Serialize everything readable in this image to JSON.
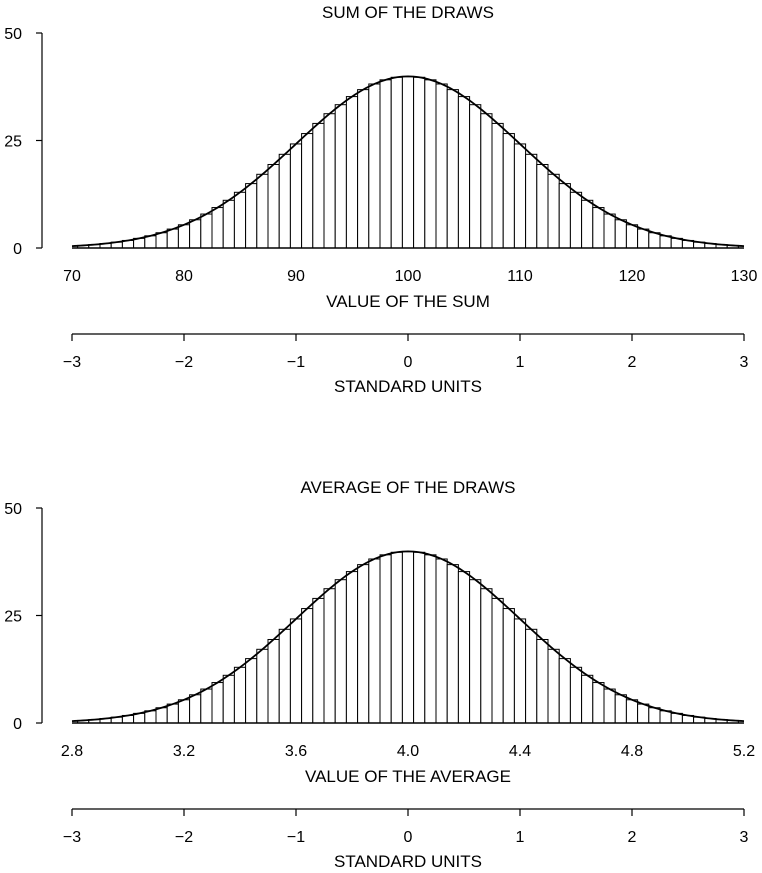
{
  "chart_data": [
    {
      "type": "bar",
      "title": "SUM OF THE DRAWS",
      "xlabel": "VALUE OF THE SUM",
      "ylabel": "",
      "x_range": [
        70,
        130
      ],
      "ylim": [
        0,
        50
      ],
      "y_ticks": [
        "0",
        "25",
        "50"
      ],
      "x_ticks": [
        {
          "value": 70,
          "label": "70"
        },
        {
          "value": 80,
          "label": "80"
        },
        {
          "value": 90,
          "label": "90"
        },
        {
          "value": 100,
          "label": "100"
        },
        {
          "value": 110,
          "label": "110"
        },
        {
          "value": 120,
          "label": "120"
        },
        {
          "value": 130,
          "label": "130"
        }
      ],
      "bar_centers": [
        71,
        72,
        73,
        74,
        75,
        76,
        77,
        78,
        79,
        80,
        81,
        82,
        83,
        84,
        85,
        86,
        87,
        88,
        89,
        90,
        91,
        92,
        93,
        94,
        95,
        96,
        97,
        98,
        99,
        100,
        101,
        102,
        103,
        104,
        105,
        106,
        107,
        108,
        109,
        110,
        111,
        112,
        113,
        114,
        115,
        116,
        117,
        118,
        119,
        120,
        121,
        122,
        123,
        124,
        125,
        126,
        127,
        128,
        129
      ],
      "curve": {
        "kind": "normal",
        "mean": 100,
        "sd": 10,
        "peak": 39.9
      },
      "standard_units": {
        "label": "STANDARD UNITS",
        "ticks": [
          {
            "value": -3,
            "label": "−3"
          },
          {
            "value": -2,
            "label": "−2"
          },
          {
            "value": -1,
            "label": "−1"
          },
          {
            "value": 0,
            "label": "0"
          },
          {
            "value": 1,
            "label": "1"
          },
          {
            "value": 2,
            "label": "2"
          },
          {
            "value": 3,
            "label": "3"
          }
        ]
      }
    },
    {
      "type": "bar",
      "title": "AVERAGE OF THE DRAWS",
      "xlabel": "VALUE OF THE AVERAGE",
      "ylabel": "",
      "x_range": [
        2.8,
        5.2
      ],
      "ylim": [
        0,
        50
      ],
      "y_ticks": [
        "0",
        "25",
        "50"
      ],
      "x_ticks": [
        {
          "value": 2.8,
          "label": "2.8"
        },
        {
          "value": 3.2,
          "label": "3.2"
        },
        {
          "value": 3.6,
          "label": "3.6"
        },
        {
          "value": 4.0,
          "label": "4.0"
        },
        {
          "value": 4.4,
          "label": "4.4"
        },
        {
          "value": 4.8,
          "label": "4.8"
        },
        {
          "value": 5.2,
          "label": "5.2"
        }
      ],
      "bar_centers": [
        2.84,
        2.88,
        2.92,
        2.96,
        3.0,
        3.04,
        3.08,
        3.12,
        3.16,
        3.2,
        3.24,
        3.28,
        3.32,
        3.36,
        3.4,
        3.44,
        3.48,
        3.52,
        3.56,
        3.6,
        3.64,
        3.68,
        3.72,
        3.76,
        3.8,
        3.84,
        3.88,
        3.92,
        3.96,
        4.0,
        4.04,
        4.08,
        4.12,
        4.16,
        4.2,
        4.24,
        4.28,
        4.32,
        4.36,
        4.4,
        4.44,
        4.48,
        4.52,
        4.56,
        4.6,
        4.64,
        4.68,
        4.72,
        4.76,
        4.8,
        4.84,
        4.88,
        4.92,
        4.96,
        5.0,
        5.04,
        5.08,
        5.12,
        5.16
      ],
      "curve": {
        "kind": "normal",
        "mean": 4.0,
        "sd": 0.4,
        "peak": 39.9
      },
      "standard_units": {
        "label": "STANDARD UNITS",
        "ticks": [
          {
            "value": -3,
            "label": "−3"
          },
          {
            "value": -2,
            "label": "−2"
          },
          {
            "value": -1,
            "label": "−1"
          },
          {
            "value": 0,
            "label": "0"
          },
          {
            "value": 1,
            "label": "1"
          },
          {
            "value": 2,
            "label": "2"
          },
          {
            "value": 3,
            "label": "3"
          }
        ]
      }
    }
  ]
}
